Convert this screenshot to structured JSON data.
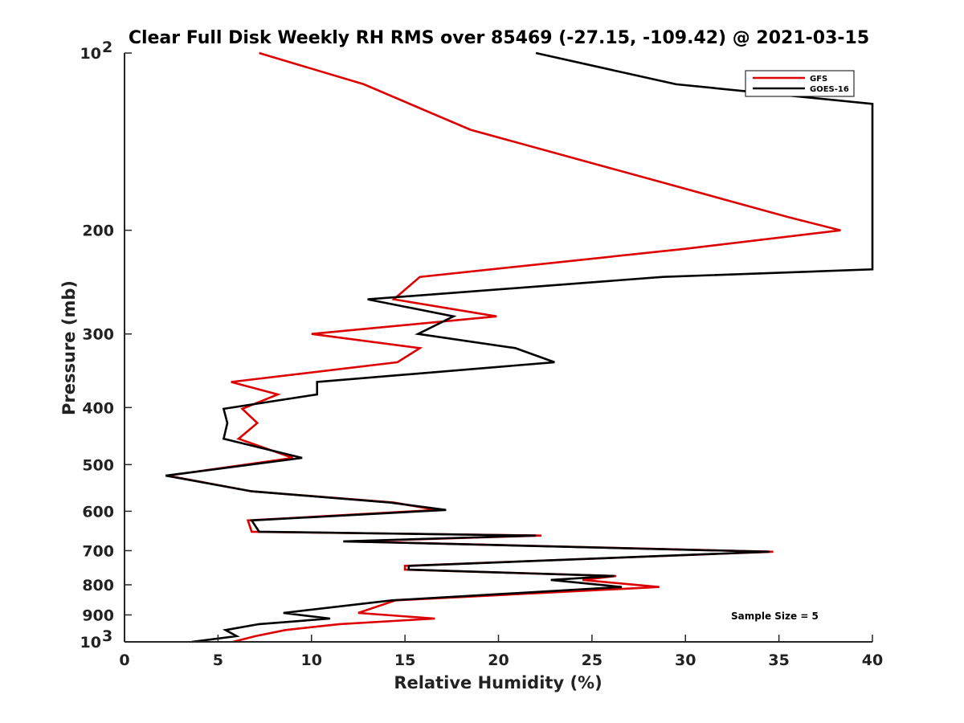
{
  "chart_data": {
    "type": "line",
    "title": "Clear Full Disk Weekly RH RMS over 85469 (-27.15, -109.42) @ 2021-03-15",
    "xlabel": "Relative Humidity (%)",
    "ylabel": "Pressure (mb)",
    "xlim": [
      0,
      40
    ],
    "ylim": [
      100,
      1000
    ],
    "y_scale": "log",
    "y_reversed": true,
    "grid": false,
    "x_ticks": [
      0,
      5,
      10,
      15,
      20,
      25,
      30,
      35,
      40
    ],
    "x_tick_labels": [
      "0",
      "5",
      "10",
      "15",
      "20",
      "25",
      "30",
      "35",
      "40"
    ],
    "y_ticks": [
      100,
      200,
      300,
      400,
      500,
      600,
      700,
      800,
      900,
      1000
    ],
    "y_tick_labels": [
      {
        "base": "10",
        "exp": "2"
      },
      {
        "base": "200",
        "exp": ""
      },
      {
        "base": "300",
        "exp": ""
      },
      {
        "base": "400",
        "exp": ""
      },
      {
        "base": "500",
        "exp": ""
      },
      {
        "base": "600",
        "exp": ""
      },
      {
        "base": "700",
        "exp": ""
      },
      {
        "base": "800",
        "exp": ""
      },
      {
        "base": "900",
        "exp": ""
      },
      {
        "base": "10",
        "exp": "3"
      }
    ],
    "legend_position": "top-right",
    "annotation": "Sample Size = 5",
    "series": [
      {
        "name": "GFS",
        "color": "#dd0000",
        "points": [
          [
            7.2,
            100
          ],
          [
            12.8,
            113
          ],
          [
            18.5,
            135
          ],
          [
            28.5,
            165
          ],
          [
            35.5,
            190
          ],
          [
            38.3,
            200
          ],
          [
            30.0,
            215
          ],
          [
            15.8,
            240
          ],
          [
            14.4,
            262
          ],
          [
            19.9,
            280
          ],
          [
            10.0,
            300
          ],
          [
            15.8,
            317
          ],
          [
            14.6,
            335
          ],
          [
            5.7,
            362
          ],
          [
            8.2,
            380
          ],
          [
            6.3,
            402
          ],
          [
            7.1,
            425
          ],
          [
            6.1,
            452
          ],
          [
            9.0,
            487
          ],
          [
            2.3,
            522
          ],
          [
            6.8,
            555
          ],
          [
            14.4,
            580
          ],
          [
            16.7,
            597
          ],
          [
            6.6,
            622
          ],
          [
            6.8,
            650
          ],
          [
            22.3,
            660
          ],
          [
            12.0,
            675
          ],
          [
            34.7,
            703
          ],
          [
            15.0,
            743
          ],
          [
            15.0,
            754
          ],
          [
            26.3,
            773
          ],
          [
            24.5,
            785
          ],
          [
            28.6,
            807
          ],
          [
            14.5,
            850
          ],
          [
            12.5,
            893
          ],
          [
            16.6,
            913
          ],
          [
            11.5,
            933
          ],
          [
            8.6,
            955
          ],
          [
            7.0,
            978
          ],
          [
            5.8,
            1000
          ]
        ]
      },
      {
        "name": "GOES-16",
        "color": "#000000",
        "points": [
          [
            22.0,
            100
          ],
          [
            29.5,
            113
          ],
          [
            40.0,
            122
          ],
          [
            40.0,
            233
          ],
          [
            28.8,
            240
          ],
          [
            13.0,
            262
          ],
          [
            17.6,
            280
          ],
          [
            15.7,
            300
          ],
          [
            20.9,
            317
          ],
          [
            23.0,
            335
          ],
          [
            10.3,
            362
          ],
          [
            10.3,
            380
          ],
          [
            5.3,
            402
          ],
          [
            5.5,
            425
          ],
          [
            5.3,
            452
          ],
          [
            9.5,
            487
          ],
          [
            2.2,
            522
          ],
          [
            6.8,
            555
          ],
          [
            14.2,
            580
          ],
          [
            17.2,
            597
          ],
          [
            6.8,
            622
          ],
          [
            7.2,
            650
          ],
          [
            22.0,
            660
          ],
          [
            11.7,
            675
          ],
          [
            34.5,
            703
          ],
          [
            15.2,
            743
          ],
          [
            15.2,
            754
          ],
          [
            26.2,
            773
          ],
          [
            22.8,
            785
          ],
          [
            26.6,
            807
          ],
          [
            14.3,
            850
          ],
          [
            8.5,
            893
          ],
          [
            11.0,
            913
          ],
          [
            7.2,
            933
          ],
          [
            5.4,
            955
          ],
          [
            6.0,
            978
          ],
          [
            3.6,
            1000
          ]
        ]
      }
    ]
  }
}
